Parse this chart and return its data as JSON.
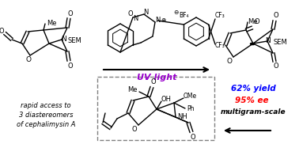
{
  "background_color": "#ffffff",
  "uv_light_text": "UV light",
  "uv_light_color": "#9900cc",
  "yield_text": "62% yield",
  "yield_color": "#0000ff",
  "ee_text": "95% ee",
  "ee_color": "#ff0000",
  "multigram_text": "multigram-scale",
  "multigram_color": "#000000",
  "rapid_access_line1": "rapid access to",
  "rapid_access_line2": "3 diastereomers",
  "rapid_access_line3": "of cephalimysin A",
  "rapid_access_color": "#000000",
  "fig_width": 3.78,
  "fig_height": 1.82,
  "dpi": 100,
  "line_color": "#000000"
}
